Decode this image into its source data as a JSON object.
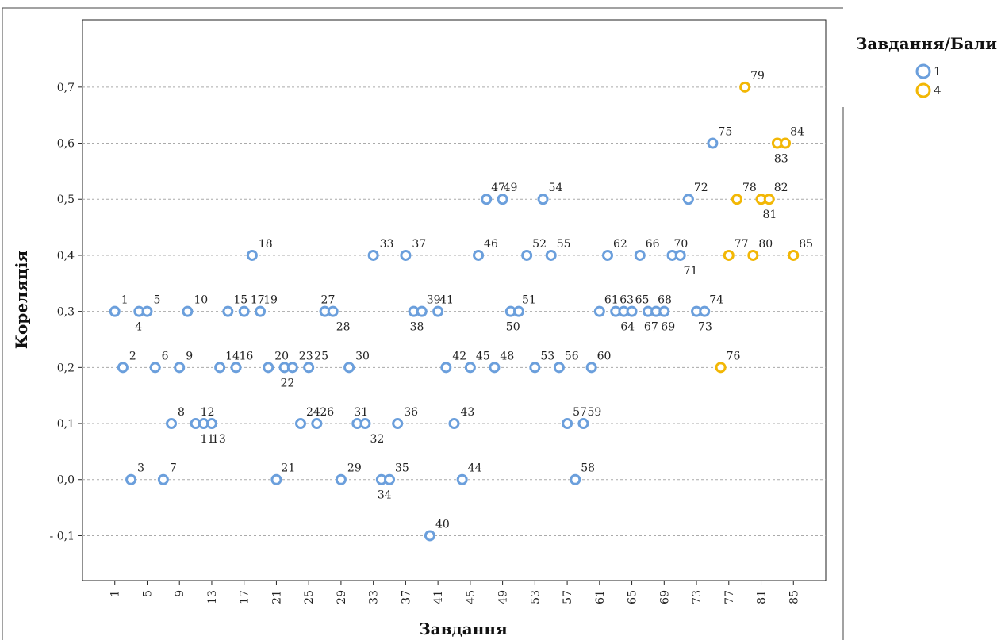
{
  "chart_data": {
    "type": "scatter",
    "title": "",
    "xlabel": "Завдання",
    "ylabel": "Кореляція",
    "xlim": [
      -3,
      89
    ],
    "ylim": [
      -0.18,
      0.82
    ],
    "x_ticks": [
      1,
      5,
      9,
      13,
      17,
      21,
      25,
      29,
      33,
      37,
      41,
      45,
      49,
      53,
      57,
      61,
      65,
      69,
      73,
      77,
      81,
      85
    ],
    "y_ticks": [
      {
        "value": -0.1,
        "label": "- 0,1"
      },
      {
        "value": 0.0,
        "label": "0,0"
      },
      {
        "value": 0.1,
        "label": "0,1"
      },
      {
        "value": 0.2,
        "label": "0,2"
      },
      {
        "value": 0.3,
        "label": "0,3"
      },
      {
        "value": 0.4,
        "label": "0,4"
      },
      {
        "value": 0.5,
        "label": "0,5"
      },
      {
        "value": 0.6,
        "label": "0,6"
      },
      {
        "value": 0.7,
        "label": "0,7"
      }
    ],
    "grid": "horizontal-dashed",
    "legend": {
      "title": "Завдання/Бали",
      "placement": "top-right"
    },
    "series": [
      {
        "name": "1",
        "color": "#6b9fdc",
        "points": [
          {
            "x": 1,
            "y": 0.3
          },
          {
            "x": 2,
            "y": 0.2
          },
          {
            "x": 3,
            "y": 0.0
          },
          {
            "x": 4,
            "y": 0.3
          },
          {
            "x": 5,
            "y": 0.3
          },
          {
            "x": 6,
            "y": 0.2
          },
          {
            "x": 7,
            "y": 0.0
          },
          {
            "x": 8,
            "y": 0.1
          },
          {
            "x": 9,
            "y": 0.2
          },
          {
            "x": 10,
            "y": 0.3
          },
          {
            "x": 11,
            "y": 0.1
          },
          {
            "x": 12,
            "y": 0.1
          },
          {
            "x": 13,
            "y": 0.1
          },
          {
            "x": 14,
            "y": 0.2
          },
          {
            "x": 15,
            "y": 0.3
          },
          {
            "x": 16,
            "y": 0.2
          },
          {
            "x": 17,
            "y": 0.3
          },
          {
            "x": 18,
            "y": 0.4
          },
          {
            "x": 19,
            "y": 0.3
          },
          {
            "x": 20,
            "y": 0.2
          },
          {
            "x": 21,
            "y": 0.0
          },
          {
            "x": 22,
            "y": 0.2
          },
          {
            "x": 23,
            "y": 0.2
          },
          {
            "x": 24,
            "y": 0.1
          },
          {
            "x": 25,
            "y": 0.2
          },
          {
            "x": 26,
            "y": 0.1
          },
          {
            "x": 27,
            "y": 0.3
          },
          {
            "x": 28,
            "y": 0.3
          },
          {
            "x": 29,
            "y": 0.0
          },
          {
            "x": 30,
            "y": 0.2
          },
          {
            "x": 31,
            "y": 0.1
          },
          {
            "x": 32,
            "y": 0.1
          },
          {
            "x": 33,
            "y": 0.4
          },
          {
            "x": 34,
            "y": 0.0
          },
          {
            "x": 35,
            "y": 0.0
          },
          {
            "x": 36,
            "y": 0.1
          },
          {
            "x": 37,
            "y": 0.4
          },
          {
            "x": 38,
            "y": 0.3
          },
          {
            "x": 39,
            "y": 0.3
          },
          {
            "x": 40,
            "y": -0.1
          },
          {
            "x": 41,
            "y": 0.3
          },
          {
            "x": 42,
            "y": 0.2
          },
          {
            "x": 43,
            "y": 0.1
          },
          {
            "x": 44,
            "y": 0.0
          },
          {
            "x": 45,
            "y": 0.2
          },
          {
            "x": 46,
            "y": 0.4
          },
          {
            "x": 47,
            "y": 0.5
          },
          {
            "x": 48,
            "y": 0.2
          },
          {
            "x": 49,
            "y": 0.5
          },
          {
            "x": 50,
            "y": 0.3
          },
          {
            "x": 51,
            "y": 0.3
          },
          {
            "x": 52,
            "y": 0.4
          },
          {
            "x": 53,
            "y": 0.2
          },
          {
            "x": 54,
            "y": 0.5
          },
          {
            "x": 55,
            "y": 0.4
          },
          {
            "x": 56,
            "y": 0.2
          },
          {
            "x": 57,
            "y": 0.1
          },
          {
            "x": 58,
            "y": 0.0
          },
          {
            "x": 59,
            "y": 0.1
          },
          {
            "x": 60,
            "y": 0.2
          },
          {
            "x": 61,
            "y": 0.3
          },
          {
            "x": 62,
            "y": 0.4
          },
          {
            "x": 63,
            "y": 0.3
          },
          {
            "x": 64,
            "y": 0.3
          },
          {
            "x": 65,
            "y": 0.3
          },
          {
            "x": 66,
            "y": 0.4
          },
          {
            "x": 67,
            "y": 0.3
          },
          {
            "x": 68,
            "y": 0.3
          },
          {
            "x": 69,
            "y": 0.3
          },
          {
            "x": 70,
            "y": 0.4
          },
          {
            "x": 71,
            "y": 0.4
          },
          {
            "x": 72,
            "y": 0.5
          },
          {
            "x": 73,
            "y": 0.3
          },
          {
            "x": 74,
            "y": 0.3
          },
          {
            "x": 75,
            "y": 0.6
          }
        ]
      },
      {
        "name": "4",
        "color": "#f2b705",
        "points": [
          {
            "x": 76,
            "y": 0.2
          },
          {
            "x": 77,
            "y": 0.4
          },
          {
            "x": 78,
            "y": 0.5
          },
          {
            "x": 79,
            "y": 0.7
          },
          {
            "x": 80,
            "y": 0.4
          },
          {
            "x": 81,
            "y": 0.5
          },
          {
            "x": 82,
            "y": 0.5
          },
          {
            "x": 83,
            "y": 0.6
          },
          {
            "x": 84,
            "y": 0.6
          },
          {
            "x": 85,
            "y": 0.4
          }
        ]
      }
    ],
    "point_labels": [
      {
        "text": "1",
        "dx": 8,
        "dy": -10
      },
      {
        "text": "2",
        "dx": 8,
        "dy": -10
      },
      {
        "text": "3",
        "dx": 8,
        "dy": -10
      },
      {
        "text": "4",
        "dx": -5,
        "dy": 24
      },
      {
        "text": "5",
        "dx": 8,
        "dy": -10
      },
      {
        "text": "6",
        "dx": 8,
        "dy": -10
      },
      {
        "text": "7",
        "dx": 8,
        "dy": -10
      },
      {
        "text": "8",
        "dx": 8,
        "dy": -10
      },
      {
        "text": "9",
        "dx": 8,
        "dy": -10
      },
      {
        "text": "10",
        "dx": 8,
        "dy": -10
      },
      {
        "text": "11",
        "dx": 6,
        "dy": 24
      },
      {
        "text": "12",
        "dx": -4,
        "dy": -10
      },
      {
        "text": "13",
        "dx": 0,
        "dy": 24
      },
      {
        "text": "14",
        "dx": 7,
        "dy": -10
      },
      {
        "text": "15",
        "dx": 7,
        "dy": -10
      },
      {
        "text": "16",
        "dx": 4,
        "dy": -10
      },
      {
        "text": "17",
        "dx": 8,
        "dy": -10
      },
      {
        "text": "18",
        "dx": 8,
        "dy": -10
      },
      {
        "text": "19",
        "dx": 4,
        "dy": -10
      },
      {
        "text": "20",
        "dx": 8,
        "dy": -10
      },
      {
        "text": "21",
        "dx": 6,
        "dy": -10
      },
      {
        "text": "22",
        "dx": -5,
        "dy": 24
      },
      {
        "text": "23",
        "dx": 8,
        "dy": -10
      },
      {
        "text": "24",
        "dx": 7,
        "dy": -10
      },
      {
        "text": "25",
        "dx": 7,
        "dy": -10
      },
      {
        "text": "26",
        "dx": 4,
        "dy": -10
      },
      {
        "text": "27",
        "dx": -5,
        "dy": -10
      },
      {
        "text": "28",
        "dx": 4,
        "dy": 24
      },
      {
        "text": "29",
        "dx": 8,
        "dy": -10
      },
      {
        "text": "30",
        "dx": 8,
        "dy": -10
      },
      {
        "text": "31",
        "dx": -4,
        "dy": -10
      },
      {
        "text": "32",
        "dx": 6,
        "dy": 24
      },
      {
        "text": "33",
        "dx": 8,
        "dy": -10
      },
      {
        "text": "34",
        "dx": -5,
        "dy": 24
      },
      {
        "text": "35",
        "dx": 7,
        "dy": -10
      },
      {
        "text": "36",
        "dx": 8,
        "dy": -10
      },
      {
        "text": "37",
        "dx": 8,
        "dy": -10
      },
      {
        "text": "38",
        "dx": -5,
        "dy": 24
      },
      {
        "text": "39",
        "dx": 6,
        "dy": -10
      },
      {
        "text": "40",
        "dx": 7,
        "dy": -10
      },
      {
        "text": "41",
        "dx": 2,
        "dy": -10
      },
      {
        "text": "42",
        "dx": 8,
        "dy": -10
      },
      {
        "text": "43",
        "dx": 8,
        "dy": -10
      },
      {
        "text": "44",
        "dx": 7,
        "dy": -10
      },
      {
        "text": "45",
        "dx": 7,
        "dy": -10
      },
      {
        "text": "46",
        "dx": 7,
        "dy": -10
      },
      {
        "text": "47",
        "dx": 6,
        "dy": -10
      },
      {
        "text": "48",
        "dx": 7,
        "dy": -10
      },
      {
        "text": "49",
        "dx": 1,
        "dy": -10
      },
      {
        "text": "50",
        "dx": -6,
        "dy": 24
      },
      {
        "text": "51",
        "dx": 4,
        "dy": -10
      },
      {
        "text": "52",
        "dx": 7,
        "dy": -10
      },
      {
        "text": "53",
        "dx": 7,
        "dy": -10
      },
      {
        "text": "54",
        "dx": 7,
        "dy": -10
      },
      {
        "text": "55",
        "dx": 7,
        "dy": -10
      },
      {
        "text": "56",
        "dx": 7,
        "dy": -10
      },
      {
        "text": "57",
        "dx": 7,
        "dy": -10
      },
      {
        "text": "58",
        "dx": 7,
        "dy": -10
      },
      {
        "text": "59",
        "dx": 5,
        "dy": -10
      },
      {
        "text": "60",
        "dx": 7,
        "dy": -10
      },
      {
        "text": "61",
        "dx": 6,
        "dy": -10
      },
      {
        "text": "62",
        "dx": 7,
        "dy": -10
      },
      {
        "text": "63",
        "dx": 5,
        "dy": -10
      },
      {
        "text": "64",
        "dx": -4,
        "dy": 24
      },
      {
        "text": "65",
        "dx": 4,
        "dy": -10
      },
      {
        "text": "66",
        "dx": 7,
        "dy": -10
      },
      {
        "text": "67",
        "dx": -5,
        "dy": 24
      },
      {
        "text": "68",
        "dx": 2,
        "dy": -10
      },
      {
        "text": "69",
        "dx": -4,
        "dy": 24
      },
      {
        "text": "70",
        "dx": 2,
        "dy": -10
      },
      {
        "text": "71",
        "dx": 4,
        "dy": 24
      },
      {
        "text": "72",
        "dx": 7,
        "dy": -10
      },
      {
        "text": "73",
        "dx": 2,
        "dy": 24
      },
      {
        "text": "74",
        "dx": 6,
        "dy": -10
      },
      {
        "text": "75",
        "dx": 7,
        "dy": -10
      },
      {
        "text": "76",
        "dx": 7,
        "dy": -10
      },
      {
        "text": "77",
        "dx": 7,
        "dy": -10
      },
      {
        "text": "78",
        "dx": 7,
        "dy": -10
      },
      {
        "text": "79",
        "dx": 7,
        "dy": -10
      },
      {
        "text": "80",
        "dx": 7,
        "dy": -10
      },
      {
        "text": "81",
        "dx": 2,
        "dy": 24
      },
      {
        "text": "82",
        "dx": 6,
        "dy": -10
      },
      {
        "text": "83",
        "dx": -4,
        "dy": 24
      },
      {
        "text": "84",
        "dx": 6,
        "dy": -10
      },
      {
        "text": "85",
        "dx": 7,
        "dy": -10
      }
    ]
  }
}
